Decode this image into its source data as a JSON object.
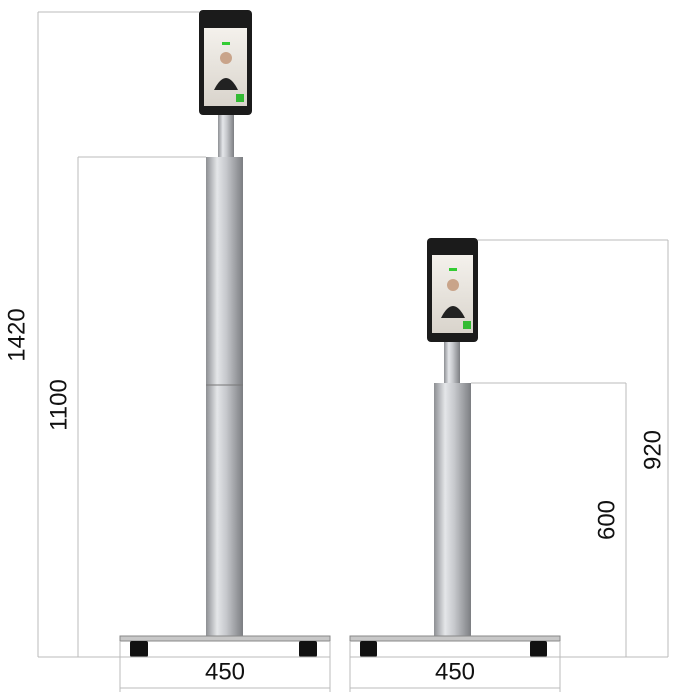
{
  "dimensions": {
    "left_total_height": "1420",
    "left_pole_height": "1100",
    "left_base_width": "450",
    "right_total_height": "920",
    "right_pole_height": "600",
    "right_base_width": "450"
  }
}
